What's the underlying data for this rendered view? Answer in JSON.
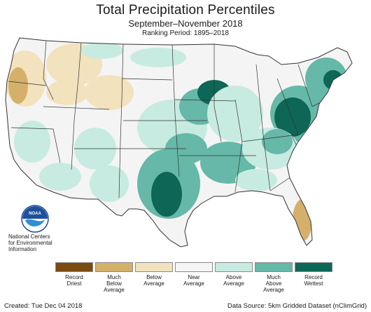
{
  "title": "Total Precipitation Percentiles",
  "subtitle": "September–November 2018",
  "ranking_period": "Ranking Period: 1895–2018",
  "logo": {
    "icon": "noaa-logo-icon",
    "text": "NOAA",
    "caption_lines": [
      "National Centers",
      "for Environmental",
      "Information"
    ]
  },
  "legend": [
    {
      "lines": [
        "Record",
        "Driest"
      ],
      "color": "#7a4a0e"
    },
    {
      "lines": [
        "Much",
        "Below",
        "Average"
      ],
      "color": "#d5b06a"
    },
    {
      "lines": [
        "Below",
        "Average"
      ],
      "color": "#f2e2bd"
    },
    {
      "lines": [
        "Near",
        "Average"
      ],
      "color": "#f5f5f5"
    },
    {
      "lines": [
        "Above",
        "Average"
      ],
      "color": "#c7ebe0"
    },
    {
      "lines": [
        "Much",
        "Above",
        "Average"
      ],
      "color": "#66b8a8"
    },
    {
      "lines": [
        "Record",
        "Wettest"
      ],
      "color": "#0e6756"
    }
  ],
  "footer": {
    "created": "Created: Tue Dec 04 2018",
    "source": "Data Source: 5km Gridded Dataset (nClimGrid)"
  }
}
